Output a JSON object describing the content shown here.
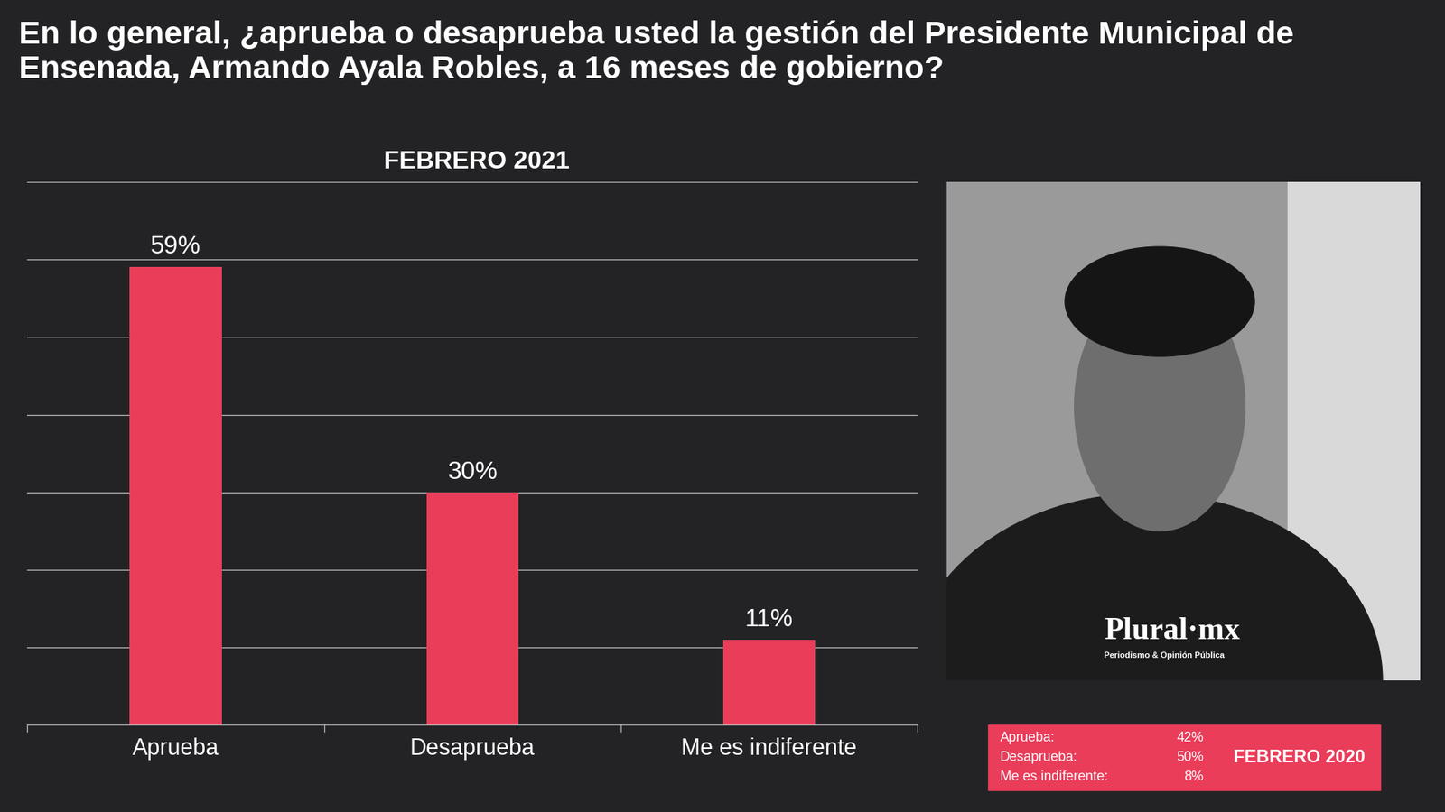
{
  "chart_data": {
    "type": "bar",
    "title": "En lo general, ¿aprueba o desaprueba usted la gestión del Presidente Municipal de Ensenada, Armando Ayala Robles, a 16 meses de gobierno?",
    "subtitle": "FEBRERO 2021",
    "categories": [
      "Aprueba",
      "Desaprueba",
      "Me es indiferente"
    ],
    "values": [
      59,
      30,
      11
    ],
    "value_labels": [
      "59%",
      "30%",
      "11%"
    ],
    "color": "#e93d5a",
    "ylim": [
      0,
      70
    ],
    "yticks": [
      0,
      10,
      20,
      30,
      40,
      50,
      60,
      70
    ],
    "grid": true,
    "data_labels": true,
    "tick_labels": "x"
  },
  "image": {
    "logo": "Plural·mx",
    "logo_tagline": "Periodismo & Opinión Pública"
  },
  "comparison": {
    "title": "FEBRERO 2020",
    "rows": [
      [
        "Aprueba:",
        "42%"
      ],
      [
        "Desaprueba:",
        "50%"
      ],
      [
        "Me es indiferente:",
        "8%"
      ]
    ]
  }
}
